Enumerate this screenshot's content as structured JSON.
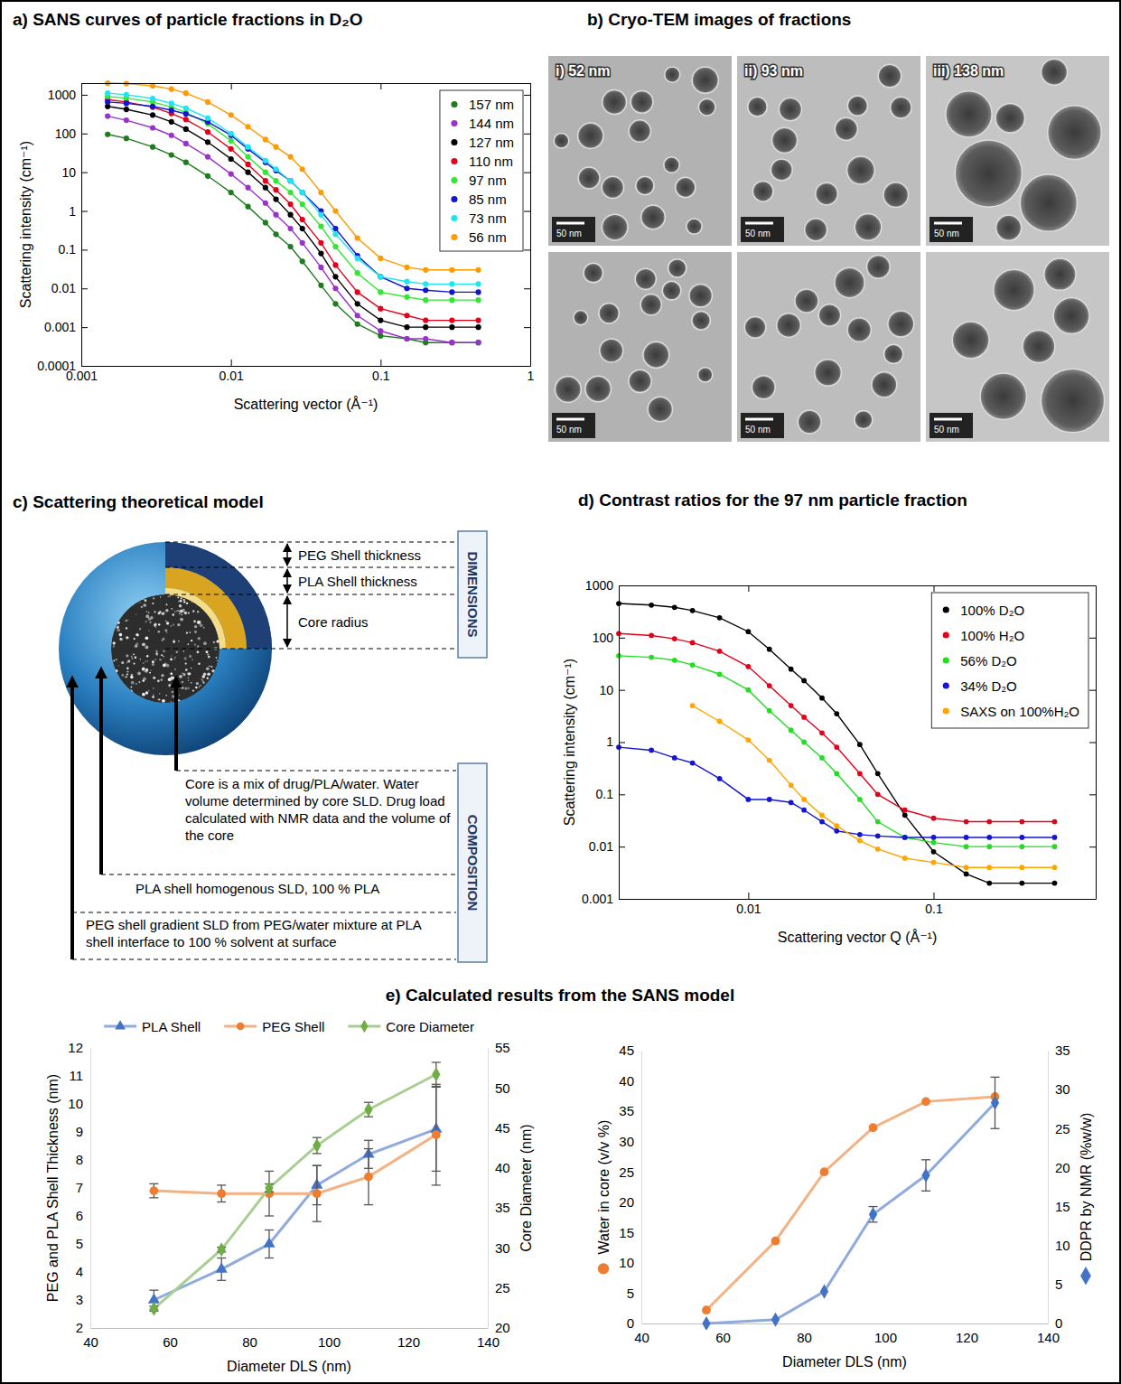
{
  "chart_data": [
    {
      "type": "scatter",
      "title": "a) SANS curves of particle fractions in D₂O",
      "xlabel": "Scattering vector (Å⁻¹)",
      "ylabel": "Scattering intensity (cm⁻¹)",
      "log": true,
      "xlim": [
        0.001,
        1
      ],
      "ylim": [
        0.0001,
        2000
      ],
      "xticks": [
        0.001,
        0.01,
        0.1,
        1
      ],
      "yticks": [
        0.0001,
        0.001,
        0.01,
        0.1,
        1,
        10,
        100,
        1000
      ],
      "marker": "circle",
      "line_style": "solid",
      "legend": "upper right",
      "x": [
        0.0015,
        0.002,
        0.003,
        0.004,
        0.005,
        0.007,
        0.01,
        0.013,
        0.017,
        0.02,
        0.025,
        0.03,
        0.04,
        0.05,
        0.07,
        0.1,
        0.15,
        0.2,
        0.3,
        0.45
      ],
      "series": [
        {
          "name": "157 nm",
          "color": "#1e7b1e",
          "values": [
            95,
            75,
            45,
            28,
            18,
            8,
            3,
            1.3,
            0.5,
            0.25,
            0.12,
            0.05,
            0.012,
            0.004,
            0.0012,
            0.0006,
            0.0005,
            0.0004,
            0.0004,
            0.0004
          ]
        },
        {
          "name": "144 nm",
          "color": "#9932cc",
          "values": [
            280,
            220,
            140,
            90,
            55,
            25,
            9,
            4,
            1.6,
            0.8,
            0.35,
            0.15,
            0.035,
            0.01,
            0.002,
            0.0008,
            0.0005,
            0.0005,
            0.0004,
            0.0004
          ]
        },
        {
          "name": "127 nm",
          "color": "#000000",
          "values": [
            500,
            420,
            300,
            200,
            130,
            60,
            22,
            10,
            4,
            2,
            0.8,
            0.35,
            0.08,
            0.02,
            0.004,
            0.0015,
            0.001,
            0.001,
            0.001,
            0.001
          ]
        },
        {
          "name": "110 nm",
          "color": "#e3001b",
          "values": [
            750,
            650,
            480,
            330,
            230,
            110,
            40,
            16,
            6,
            3.5,
            1.5,
            0.6,
            0.15,
            0.04,
            0.008,
            0.003,
            0.002,
            0.0015,
            0.0015,
            0.0015
          ]
        },
        {
          "name": "97 nm",
          "color": "#33e633",
          "values": [
            900,
            820,
            650,
            480,
            350,
            180,
            65,
            25,
            10,
            6,
            3,
            1.5,
            0.4,
            0.12,
            0.025,
            0.008,
            0.006,
            0.005,
            0.005,
            0.005
          ]
        },
        {
          "name": "85 nm",
          "color": "#1414d2",
          "values": [
            650,
            600,
            500,
            400,
            320,
            200,
            90,
            40,
            18,
            11,
            6,
            3,
            1,
            0.35,
            0.07,
            0.02,
            0.01,
            0.009,
            0.008,
            0.008
          ]
        },
        {
          "name": "73 nm",
          "color": "#1ee6f0",
          "values": [
            1100,
            1000,
            800,
            600,
            450,
            250,
            100,
            45,
            20,
            12,
            6,
            3,
            0.8,
            0.25,
            0.06,
            0.02,
            0.015,
            0.013,
            0.013,
            0.013
          ]
        },
        {
          "name": "56 nm",
          "color": "#ff9a00",
          "values": [
            2000,
            1950,
            1700,
            1400,
            1100,
            650,
            300,
            150,
            70,
            45,
            25,
            12,
            3,
            1,
            0.2,
            0.06,
            0.035,
            0.03,
            0.03,
            0.03
          ]
        }
      ]
    },
    {
      "type": "scatter",
      "title": "d) Contrast ratios for the 97 nm particle fraction",
      "xlabel": "Scattering vector Q (Å⁻¹)",
      "ylabel": "Scattering intensity (cm⁻¹)",
      "log": true,
      "xlim": [
        0.002,
        0.75
      ],
      "ylim": [
        0.001,
        1000
      ],
      "xticks": [
        0.01,
        0.1
      ],
      "yticks": [
        0.001,
        0.01,
        0.1,
        1,
        10,
        100,
        1000
      ],
      "marker": "circle",
      "line_style": "solid",
      "legend": "upper right",
      "x": [
        0.002,
        0.003,
        0.004,
        0.005,
        0.007,
        0.01,
        0.013,
        0.017,
        0.02,
        0.025,
        0.03,
        0.04,
        0.05,
        0.07,
        0.1,
        0.15,
        0.2,
        0.3,
        0.45
      ],
      "series": [
        {
          "name": "100% D₂O",
          "color": "#000000",
          "values": [
            450,
            420,
            380,
            330,
            240,
            130,
            60,
            25,
            15,
            7,
            3.5,
            0.9,
            0.25,
            0.04,
            0.008,
            0.003,
            0.002,
            0.002,
            0.002
          ]
        },
        {
          "name": "100% H₂O",
          "color": "#e3001b",
          "values": [
            120,
            110,
            95,
            80,
            55,
            28,
            12,
            5,
            3,
            1.5,
            0.8,
            0.25,
            0.1,
            0.05,
            0.035,
            0.03,
            0.03,
            0.03,
            0.03
          ]
        },
        {
          "name": "56% D₂O",
          "color": "#22dd22",
          "values": [
            45,
            42,
            37,
            30,
            20,
            10,
            4,
            1.7,
            1,
            0.5,
            0.25,
            0.08,
            0.03,
            0.015,
            0.012,
            0.01,
            0.01,
            0.01,
            0.01
          ]
        },
        {
          "name": "34% D₂O",
          "color": "#1414d2",
          "values": [
            0.8,
            0.7,
            0.5,
            0.4,
            0.2,
            0.08,
            0.08,
            0.07,
            0.05,
            0.03,
            0.02,
            0.017,
            0.016,
            0.015,
            0.015,
            0.015,
            0.015,
            0.015,
            0.015
          ]
        },
        {
          "name": "SAXS on 100%H₂O",
          "color": "#ffa500",
          "values": [
            null,
            null,
            null,
            5,
            2.5,
            1.1,
            0.45,
            0.15,
            0.08,
            0.04,
            0.025,
            0.013,
            0.009,
            0.006,
            0.005,
            0.004,
            0.004,
            0.004,
            0.004
          ]
        }
      ]
    },
    {
      "type": "line",
      "xlabel": "Diameter DLS (nm)",
      "ylabel": "PEG and PLA Shell Thickness (nm)",
      "y2label": "Core Diameter (nm)",
      "x": [
        56,
        73,
        85,
        97,
        110,
        127
      ],
      "xlim": [
        40,
        140
      ],
      "xticks": [
        40,
        60,
        80,
        100,
        120,
        140
      ],
      "ylim": [
        2,
        12
      ],
      "yticks": [
        2,
        3,
        4,
        5,
        6,
        7,
        8,
        9,
        10,
        11,
        12
      ],
      "y2lim": [
        20,
        55
      ],
      "y2ticks": [
        20,
        25,
        30,
        35,
        40,
        45,
        50,
        55
      ],
      "legend": "top",
      "line_style": "solid",
      "series": [
        {
          "name": "PLA Shell",
          "color": "#4472c4",
          "marker": "triangle",
          "values": [
            3.0,
            4.1,
            5.0,
            7.1,
            8.2,
            9.1
          ],
          "errors": [
            0.35,
            0.4,
            0.5,
            0.7,
            0.5,
            1.5
          ]
        },
        {
          "name": "PEG Shell",
          "color": "#ed7d31",
          "marker": "circle",
          "values": [
            6.9,
            6.8,
            6.8,
            6.8,
            7.4,
            8.9
          ],
          "errors": [
            0.25,
            0.3,
            0.8,
            1.0,
            1.0,
            1.8
          ]
        },
        {
          "name": "Core Diameter",
          "color": "#70ad47",
          "marker": "diamond",
          "axis": "y2",
          "values": [
            22.4,
            29.8,
            37.5,
            42.8,
            47.3,
            51.7
          ],
          "errors": [
            0.3,
            0.3,
            0.5,
            1.0,
            0.9,
            1.5
          ]
        }
      ]
    },
    {
      "type": "line",
      "xlabel": "Diameter DLS (nm)",
      "x": [
        56,
        73,
        85,
        97,
        110,
        127
      ],
      "xlim": [
        40,
        140
      ],
      "xticks": [
        40,
        60,
        80,
        100,
        120,
        140
      ],
      "ylim": [
        0,
        45
      ],
      "yticks": [
        0,
        5,
        10,
        15,
        20,
        25,
        30,
        35,
        40,
        45
      ],
      "y2lim": [
        0,
        35
      ],
      "y2ticks": [
        0,
        5,
        10,
        15,
        20,
        25,
        30,
        35
      ],
      "line_style": "solid",
      "series": [
        {
          "name": "Water in core (v/v %)",
          "color": "#ed7d31",
          "marker": "circle",
          "values": [
            2.2,
            13.6,
            25,
            32.3,
            36.6,
            37.4
          ]
        },
        {
          "name": "DDPR by NMR (%w/w)",
          "color": "#4472c4",
          "marker": "diamond",
          "axis": "y2",
          "values": [
            0,
            0.5,
            4.1,
            14,
            19,
            28.3
          ],
          "errors": [
            null,
            null,
            null,
            1,
            2,
            3.3
          ]
        }
      ]
    }
  ],
  "panel_b": {
    "title": "b) Cryo-TEM images of fractions",
    "images": [
      "i) 52 nm",
      "ii) 93 nm",
      "iii) 138 nm"
    ],
    "scale_bar": "50 nm"
  },
  "panel_c": {
    "title": "c) Scattering theoretical model",
    "dimensions": {
      "heading": "DIMENSIONS",
      "labels": [
        "PEG Shell thickness",
        "PLA Shell thickness",
        "Core radius"
      ]
    },
    "composition": {
      "heading": "COMPOSITION",
      "labels": [
        "Core is a mix of drug/PLA/water. Water volume determined by core SLD. Drug load calculated with NMR data and the volume of the core",
        "PLA shell homogenous SLD, 100 % PLA",
        "PEG shell gradient SLD from PEG/water mixture at PLA shell interface to 100 % solvent at surface"
      ]
    }
  },
  "panel_e": {
    "title": "e) Calculated results from the SANS model"
  }
}
